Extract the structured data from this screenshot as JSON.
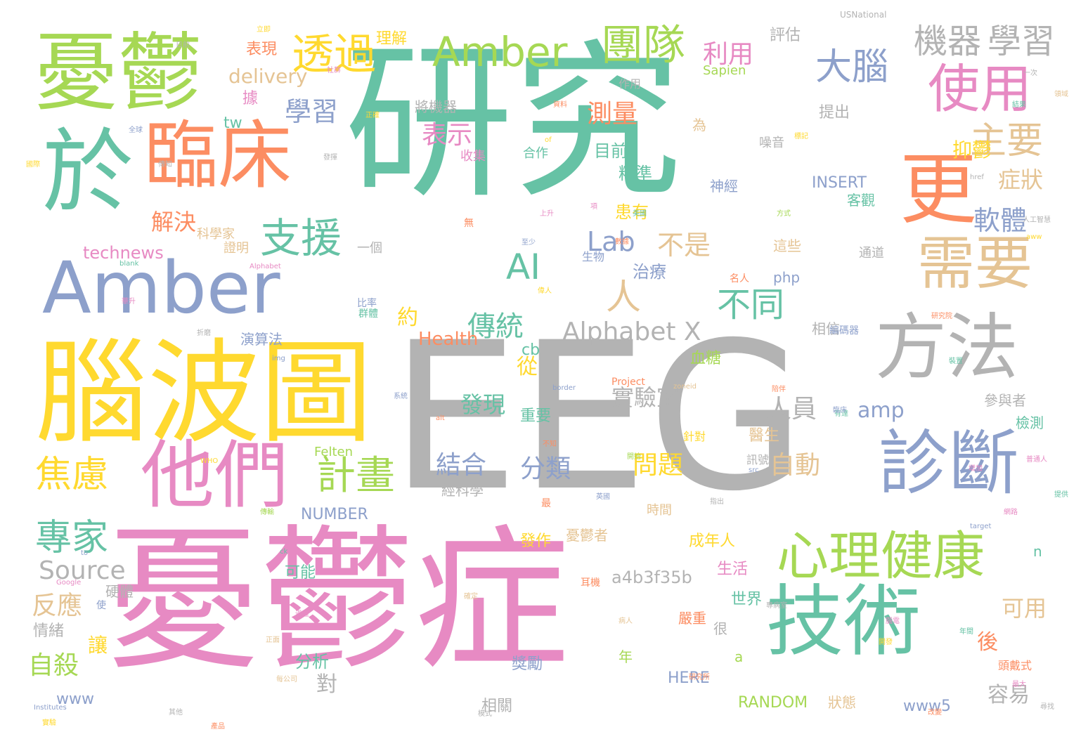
{
  "palette": {
    "teal": "#66c2a5",
    "orange": "#fc8d62",
    "blue": "#8da0cb",
    "pink": "#e78ac3",
    "green": "#a6d854",
    "yellow": "#ffd92f",
    "tan": "#e5c494",
    "gray": "#b3b3b3"
  },
  "words": [
    {
      "text": "研究",
      "color": "teal"
    },
    {
      "text": "EEG",
      "color": "gray"
    },
    {
      "text": "憂鬱症",
      "color": "pink"
    },
    {
      "text": "腦波圖",
      "color": "yellow"
    },
    {
      "text": "憂鬱",
      "color": "green"
    },
    {
      "text": "於",
      "color": "teal"
    },
    {
      "text": "臨床",
      "color": "orange"
    },
    {
      "text": "Amber",
      "color": "blue"
    },
    {
      "text": "他們",
      "color": "pink"
    },
    {
      "text": "技術",
      "color": "teal"
    },
    {
      "text": "方法",
      "color": "gray"
    },
    {
      "text": "診斷",
      "color": "blue"
    },
    {
      "text": "更",
      "color": "orange"
    },
    {
      "text": "心理健康",
      "color": "green"
    },
    {
      "text": "需要",
      "color": "tan"
    },
    {
      "text": "使用",
      "color": "pink"
    },
    {
      "text": "Amber",
      "color": "green"
    },
    {
      "text": "團隊",
      "color": "green"
    },
    {
      "text": "透過",
      "color": "yellow"
    },
    {
      "text": "大腦",
      "color": "blue"
    },
    {
      "text": "機器",
      "color": "gray"
    },
    {
      "text": "學習",
      "color": "gray"
    },
    {
      "text": "主要",
      "color": "tan"
    },
    {
      "text": "支援",
      "color": "teal"
    },
    {
      "text": "人",
      "color": "tan"
    },
    {
      "text": "AI",
      "color": "teal"
    },
    {
      "text": "計畫",
      "color": "green"
    },
    {
      "text": "焦慮",
      "color": "yellow"
    },
    {
      "text": "專家",
      "color": "teal"
    },
    {
      "text": "不同",
      "color": "teal"
    },
    {
      "text": "Alphabet X",
      "color": "gray"
    },
    {
      "text": "利用",
      "color": "pink"
    },
    {
      "text": "測量",
      "color": "orange"
    },
    {
      "text": "學習",
      "color": "blue"
    },
    {
      "text": "表示",
      "color": "pink"
    },
    {
      "text": "傳統",
      "color": "teal"
    },
    {
      "text": "軟體",
      "color": "blue"
    },
    {
      "text": "症狀",
      "color": "tan"
    },
    {
      "text": "抑鬱",
      "color": "yellow"
    },
    {
      "text": "結合",
      "color": "blue"
    },
    {
      "text": "分類",
      "color": "blue"
    },
    {
      "text": "發現",
      "color": "teal"
    },
    {
      "text": "問題",
      "color": "yellow"
    },
    {
      "text": "實驗室",
      "color": "gray"
    },
    {
      "text": "人員",
      "color": "gray"
    },
    {
      "text": "amp",
      "color": "blue"
    },
    {
      "text": "自動",
      "color": "tan"
    },
    {
      "text": "Lab",
      "color": "blue"
    },
    {
      "text": "不是",
      "color": "tan"
    },
    {
      "text": "Source",
      "color": "gray"
    },
    {
      "text": "a4b3f35b",
      "color": "gray"
    },
    {
      "text": "解決",
      "color": "orange"
    },
    {
      "text": "反應",
      "color": "tan"
    },
    {
      "text": "自殺",
      "color": "green"
    },
    {
      "text": "讓",
      "color": "yellow"
    },
    {
      "text": "約",
      "color": "yellow"
    },
    {
      "text": "從",
      "color": "yellow"
    },
    {
      "text": "可用",
      "color": "tan"
    },
    {
      "text": "容易",
      "color": "gray"
    },
    {
      "text": "後",
      "color": "orange"
    },
    {
      "text": "對",
      "color": "gray"
    },
    {
      "text": "Health",
      "color": "orange"
    },
    {
      "text": "delivery",
      "color": "tan"
    },
    {
      "text": "表現",
      "color": "orange"
    },
    {
      "text": "理解",
      "color": "yellow"
    },
    {
      "text": "評估",
      "color": "gray"
    },
    {
      "text": "提出",
      "color": "gray"
    },
    {
      "text": "將機器",
      "color": "gray"
    },
    {
      "text": "目前",
      "color": "teal"
    },
    {
      "text": "精準",
      "color": "teal"
    },
    {
      "text": "患有",
      "color": "yellow"
    },
    {
      "text": "治療",
      "color": "blue"
    },
    {
      "text": "technews",
      "color": "pink"
    },
    {
      "text": "科學家",
      "color": "tan"
    },
    {
      "text": "INSERT",
      "color": "blue"
    },
    {
      "text": "客觀",
      "color": "teal"
    },
    {
      "text": "神經",
      "color": "blue"
    },
    {
      "text": "這些",
      "color": "tan"
    },
    {
      "text": "php",
      "color": "blue"
    },
    {
      "text": "cb",
      "color": "teal"
    },
    {
      "text": "醫生",
      "color": "tan"
    },
    {
      "text": "參與者",
      "color": "gray"
    },
    {
      "text": "檢測",
      "color": "teal"
    },
    {
      "text": "重要",
      "color": "teal"
    },
    {
      "text": "NUMBER",
      "color": "blue"
    },
    {
      "text": "經科學",
      "color": "gray"
    },
    {
      "text": "時間",
      "color": "tan"
    },
    {
      "text": "成年人",
      "color": "yellow"
    },
    {
      "text": "發作",
      "color": "yellow"
    },
    {
      "text": "憂鬱者",
      "color": "tan"
    },
    {
      "text": "生活",
      "color": "pink"
    },
    {
      "text": "世界",
      "color": "teal"
    },
    {
      "text": "嚴重",
      "color": "orange"
    },
    {
      "text": "很",
      "color": "gray"
    },
    {
      "text": "分析",
      "color": "teal"
    },
    {
      "text": "獎勵",
      "color": "blue"
    },
    {
      "text": "年",
      "color": "green"
    },
    {
      "text": "HERE",
      "color": "blue"
    },
    {
      "text": "RANDOM",
      "color": "green"
    },
    {
      "text": "狀態",
      "color": "tan"
    },
    {
      "text": "www5",
      "color": "blue"
    },
    {
      "text": "相關",
      "color": "gray"
    },
    {
      "text": "www",
      "color": "blue"
    },
    {
      "text": "情緒",
      "color": "gray"
    },
    {
      "text": "硬體",
      "color": "gray"
    },
    {
      "text": "可能",
      "color": "teal"
    },
    {
      "text": "血糖",
      "color": "green"
    },
    {
      "text": "相信",
      "color": "gray"
    },
    {
      "text": "演算法",
      "color": "blue"
    },
    {
      "text": "合作",
      "color": "teal"
    },
    {
      "text": "收集",
      "color": "pink"
    },
    {
      "text": "噪音",
      "color": "gray"
    },
    {
      "text": "Sapien",
      "color": "green"
    },
    {
      "text": "作用",
      "color": "gray"
    },
    {
      "text": "據",
      "color": "pink"
    },
    {
      "text": "tw",
      "color": "teal"
    },
    {
      "text": "一個",
      "color": "gray"
    },
    {
      "text": "證明",
      "color": "tan"
    },
    {
      "text": "生物",
      "color": "blue"
    },
    {
      "text": "Felten",
      "color": "green"
    },
    {
      "text": "針對",
      "color": "yellow"
    },
    {
      "text": "訊號",
      "color": "gray"
    },
    {
      "text": "為",
      "color": "tan"
    },
    {
      "text": "n",
      "color": "teal"
    },
    {
      "text": "a",
      "color": "green"
    },
    {
      "text": "通道",
      "color": "gray"
    },
    {
      "text": "編碼器",
      "color": "blue"
    },
    {
      "text": "Project",
      "color": "orange"
    },
    {
      "text": "頭戴式",
      "color": "orange"
    },
    {
      "text": "USNational",
      "color": "gray"
    },
    {
      "text": "Institutes",
      "color": "blue"
    },
    {
      "text": "Google",
      "color": "pink"
    },
    {
      "text": "WHO",
      "color": "yellow"
    },
    {
      "text": "target",
      "color": "blue"
    },
    {
      "text": "href",
      "color": "gray"
    },
    {
      "text": "border",
      "color": "blue"
    },
    {
      "text": "img",
      "color": "blue"
    },
    {
      "text": "blank",
      "color": "teal"
    },
    {
      "text": "Alphabet",
      "color": "pink"
    },
    {
      "text": "of",
      "color": "yellow"
    },
    {
      "text": "to",
      "color": "blue"
    },
    {
      "text": "ck",
      "color": "teal"
    },
    {
      "text": "src",
      "color": "blue"
    },
    {
      "text": "zoneid",
      "color": "tan"
    },
    {
      "text": "alt",
      "color": "orange"
    },
    {
      "text": "aww",
      "color": "yellow"
    },
    {
      "text": "立即",
      "color": "yellow"
    },
    {
      "text": "社群",
      "color": "pink"
    },
    {
      "text": "無",
      "color": "orange"
    },
    {
      "text": "至少",
      "color": "blue"
    },
    {
      "text": "上升",
      "color": "pink"
    },
    {
      "text": "人工智慧",
      "color": "gray"
    },
    {
      "text": "研究院",
      "color": "orange"
    },
    {
      "text": "英國",
      "color": "blue"
    },
    {
      "text": "不知",
      "color": "orange"
    },
    {
      "text": "最",
      "color": "orange"
    },
    {
      "text": "耳機",
      "color": "orange"
    },
    {
      "text": "使",
      "color": "blue"
    },
    {
      "text": "每公司",
      "color": "tan"
    },
    {
      "text": "最大",
      "color": "pink"
    },
    {
      "text": "專病室",
      "color": "gray"
    },
    {
      "text": "增加",
      "color": "pink"
    },
    {
      "text": "開始",
      "color": "green"
    },
    {
      "text": "美國",
      "color": "teal"
    },
    {
      "text": "資料",
      "color": "orange"
    },
    {
      "text": "一次",
      "color": "gray"
    },
    {
      "text": "項",
      "color": "pink"
    },
    {
      "text": "偉人",
      "color": "yellow"
    },
    {
      "text": "名人",
      "color": "orange"
    },
    {
      "text": "數據",
      "color": "orange"
    },
    {
      "text": "華升",
      "color": "pink"
    },
    {
      "text": "折磨",
      "color": "gray"
    },
    {
      "text": "比率",
      "color": "blue"
    },
    {
      "text": "群體",
      "color": "teal"
    },
    {
      "text": "發揮",
      "color": "gray"
    },
    {
      "text": "傳知",
      "color": "gray"
    },
    {
      "text": "國際",
      "color": "yellow"
    },
    {
      "text": "全球",
      "color": "blue"
    },
    {
      "text": "網路",
      "color": "pink"
    },
    {
      "text": "有達",
      "color": "teal"
    },
    {
      "text": "正面",
      "color": "tan"
    },
    {
      "text": "陪伴",
      "color": "orange"
    },
    {
      "text": "尋找",
      "color": "gray"
    },
    {
      "text": "年間",
      "color": "teal"
    },
    {
      "text": "傳輸",
      "color": "green"
    },
    {
      "text": "病人",
      "color": "tan"
    },
    {
      "text": "腦電",
      "color": "pink"
    },
    {
      "text": "普通人",
      "color": "pink"
    },
    {
      "text": "臨床",
      "color": "blue"
    },
    {
      "text": "實驗",
      "color": "yellow"
    },
    {
      "text": "其他",
      "color": "gray"
    },
    {
      "text": "領域",
      "color": "tan"
    },
    {
      "text": "方式",
      "color": "green"
    },
    {
      "text": "研究所",
      "color": "orange"
    },
    {
      "text": "正確",
      "color": "yellow"
    },
    {
      "text": "日前",
      "color": "gray"
    },
    {
      "text": "改變",
      "color": "orange"
    },
    {
      "text": "結果",
      "color": "teal"
    },
    {
      "text": "系統",
      "color": "blue"
    },
    {
      "text": "指出",
      "color": "gray"
    },
    {
      "text": "過程",
      "color": "pink"
    },
    {
      "text": "模式",
      "color": "gray"
    },
    {
      "text": "開發",
      "color": "yellow"
    },
    {
      "text": "提供",
      "color": "teal"
    },
    {
      "text": "確定",
      "color": "tan"
    },
    {
      "text": "標記",
      "color": "yellow"
    },
    {
      "text": "產品",
      "color": "orange"
    },
    {
      "text": "裝置",
      "color": "teal"
    },
    {
      "text": "參數",
      "color": "blue"
    },
    {
      "text": "特徵",
      "color": "orange"
    },
    {
      "text": "有關",
      "color": "gray"
    },
    {
      "text": "出現",
      "color": "teal"
    },
    {
      "text": "改善",
      "color": "yellow"
    }
  ]
}
